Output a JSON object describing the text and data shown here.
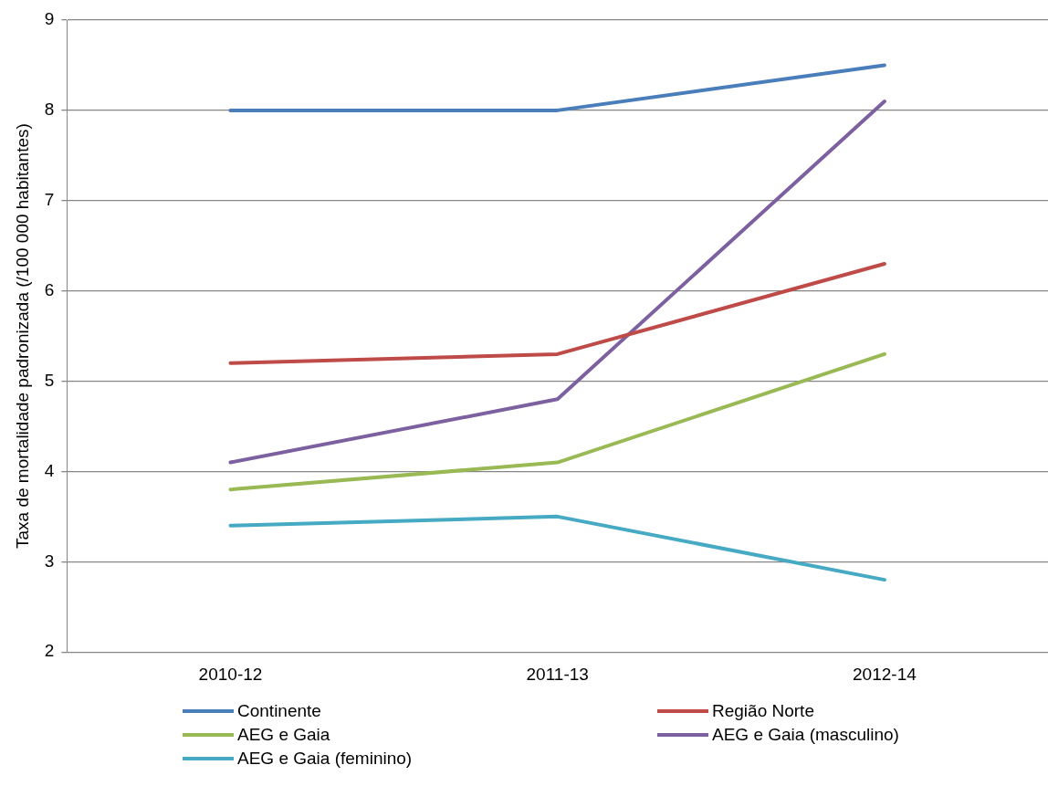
{
  "chart_data": {
    "type": "line",
    "ylabel": "Taxa de mortalidade padronizada (/100 000 habitantes)",
    "categories": [
      "2010-12",
      "2011-13",
      "2012-14"
    ],
    "series": [
      {
        "name": "Continente",
        "color": "#4a7ebb",
        "values": [
          8,
          8,
          8.5
        ]
      },
      {
        "name": "Região Norte",
        "color": "#be4b48",
        "values": [
          5.2,
          5.3,
          6.3
        ]
      },
      {
        "name": "AEG e Gaia",
        "color": "#98b954",
        "values": [
          3.8,
          4.1,
          5.3
        ]
      },
      {
        "name": "AEG e Gaia (masculino)",
        "color": "#7d60a0",
        "values": [
          4.1,
          4.8,
          8.1
        ]
      },
      {
        "name": "AEG e Gaia (feminino)",
        "color": "#46aac5",
        "values": [
          3.4,
          3.5,
          2.8
        ]
      }
    ],
    "ylim": [
      2,
      9
    ],
    "yticks": [
      2,
      3,
      4,
      5,
      6,
      7,
      8,
      9
    ],
    "grid": "y",
    "legend": "bottom",
    "marker": "none",
    "line_style": "solid"
  }
}
